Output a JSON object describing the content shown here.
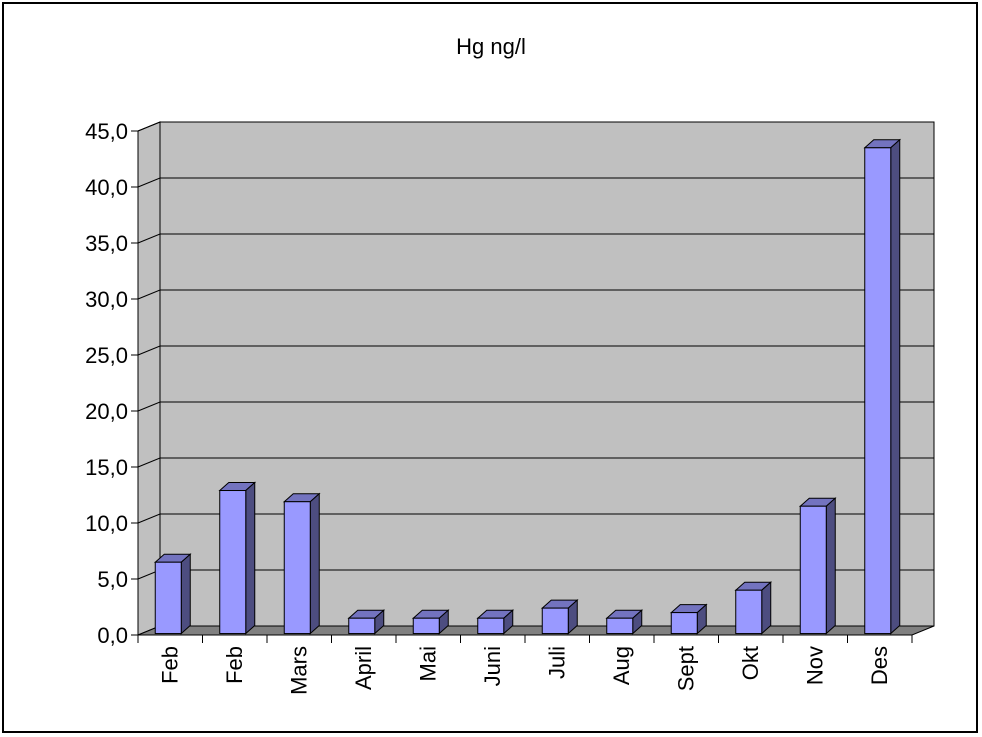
{
  "chart_data": {
    "type": "bar",
    "title": "Hg ng/l",
    "categories": [
      "Feb",
      "Feb",
      "Mars",
      "April",
      "Mai",
      "Juni",
      "Juli",
      "Aug",
      "Sept",
      "Okt",
      "Nov",
      "Des"
    ],
    "values": [
      6.5,
      12.9,
      11.9,
      1.5,
      1.5,
      1.5,
      2.4,
      1.5,
      2.0,
      4.0,
      11.5,
      43.5
    ],
    "yticks": [
      "0,0",
      "5,0",
      "10,0",
      "15,0",
      "20,0",
      "25,0",
      "30,0",
      "35,0",
      "40,0",
      "45,0"
    ],
    "ylim": [
      0,
      45
    ],
    "xlabel": "",
    "ylabel": "",
    "grid": true,
    "legend": "none",
    "colors": {
      "bar_front": "#9999ff",
      "bar_side": "#4d4d80",
      "bar_top": "#7373bf",
      "wall": "#c0c0c0",
      "floor": "#808080"
    }
  }
}
